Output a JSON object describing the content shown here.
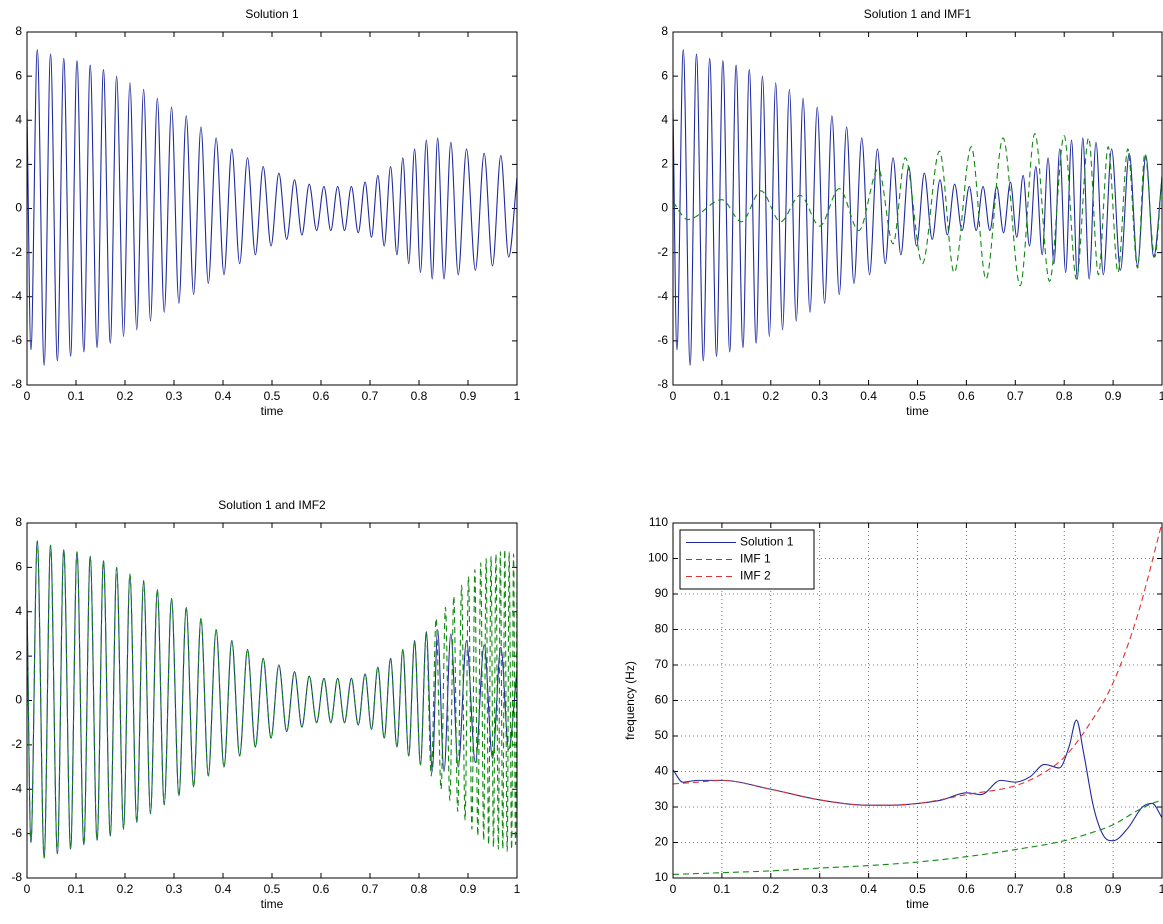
{
  "chart_data": [
    {
      "type": "line",
      "title": "Solution 1",
      "xlabel": "time",
      "xlim": [
        0,
        1
      ],
      "ylim": [
        -8,
        8
      ],
      "xticks": [
        0,
        0.1,
        0.2,
        0.3,
        0.4,
        0.5,
        0.6,
        0.7,
        0.8,
        0.9,
        1
      ],
      "yticks": [
        -8,
        -6,
        -4,
        -2,
        0,
        2,
        4,
        6,
        8
      ],
      "series": [
        {
          "color": "#1f2a9c",
          "linestyle": "solid",
          "x": [
            0,
            0.008,
            0.021,
            0.035,
            0.048,
            0.062,
            0.075,
            0.089,
            0.102,
            0.116,
            0.129,
            0.143,
            0.156,
            0.17,
            0.183,
            0.197,
            0.21,
            0.224,
            0.238,
            0.252,
            0.266,
            0.28,
            0.295,
            0.31,
            0.325,
            0.34,
            0.355,
            0.37,
            0.386,
            0.402,
            0.418,
            0.434,
            0.45,
            0.466,
            0.482,
            0.498,
            0.514,
            0.53,
            0.546,
            0.561,
            0.576,
            0.591,
            0.606,
            0.62,
            0.634,
            0.648,
            0.662,
            0.676,
            0.69,
            0.703,
            0.716,
            0.729,
            0.742,
            0.755,
            0.767,
            0.779,
            0.791,
            0.803,
            0.815,
            0.827,
            0.838,
            0.851,
            0.865,
            0.88,
            0.897,
            0.915,
            0.933,
            0.95,
            0.967,
            0.983,
            1
          ],
          "values": [
            4.5,
            -6.4,
            7.2,
            -7.1,
            7.0,
            -6.9,
            6.8,
            -6.7,
            6.7,
            -6.5,
            6.5,
            -6.3,
            6.3,
            -6.1,
            6.0,
            -5.8,
            5.7,
            -5.5,
            5.4,
            -5.1,
            5.0,
            -4.7,
            4.6,
            -4.3,
            4.2,
            -3.9,
            3.7,
            -3.4,
            3.2,
            -3.0,
            2.7,
            -2.5,
            2.3,
            -2.1,
            1.9,
            -1.7,
            1.6,
            -1.4,
            1.3,
            -1.2,
            1.1,
            -1.0,
            1.0,
            -1.0,
            1.0,
            -1.0,
            1.0,
            -1.1,
            1.2,
            -1.3,
            1.5,
            -1.7,
            1.9,
            -2.1,
            2.3,
            -2.5,
            2.7,
            -2.9,
            3.1,
            -3.2,
            3.2,
            -3.2,
            3.0,
            -3.0,
            2.7,
            -2.8,
            2.5,
            -2.6,
            2.4,
            -2.2,
            1.4
          ]
        }
      ]
    },
    {
      "type": "line",
      "title": "Solution 1 and IMF1",
      "xlabel": "time",
      "xlim": [
        0,
        1
      ],
      "ylim": [
        -8,
        8
      ],
      "xticks": [
        0,
        0.1,
        0.2,
        0.3,
        0.4,
        0.5,
        0.6,
        0.7,
        0.8,
        0.9,
        1
      ],
      "yticks": [
        -8,
        -6,
        -4,
        -2,
        0,
        2,
        4,
        6,
        8
      ],
      "series": [
        {
          "color": "#1f2a9c",
          "linestyle": "solid",
          "x": [
            0,
            0.008,
            0.021,
            0.035,
            0.048,
            0.062,
            0.075,
            0.089,
            0.102,
            0.116,
            0.129,
            0.143,
            0.156,
            0.17,
            0.183,
            0.197,
            0.21,
            0.224,
            0.238,
            0.252,
            0.266,
            0.28,
            0.295,
            0.31,
            0.325,
            0.34,
            0.355,
            0.37,
            0.386,
            0.402,
            0.418,
            0.434,
            0.45,
            0.466,
            0.482,
            0.498,
            0.514,
            0.53,
            0.546,
            0.561,
            0.576,
            0.591,
            0.606,
            0.62,
            0.634,
            0.648,
            0.662,
            0.676,
            0.69,
            0.703,
            0.716,
            0.729,
            0.742,
            0.755,
            0.767,
            0.779,
            0.791,
            0.803,
            0.815,
            0.827,
            0.838,
            0.851,
            0.865,
            0.88,
            0.897,
            0.915,
            0.933,
            0.95,
            0.967,
            0.983,
            1
          ],
          "values": [
            4.5,
            -6.4,
            7.2,
            -7.1,
            7.0,
            -6.9,
            6.8,
            -6.7,
            6.7,
            -6.5,
            6.5,
            -6.3,
            6.3,
            -6.1,
            6.0,
            -5.8,
            5.7,
            -5.5,
            5.4,
            -5.1,
            5.0,
            -4.7,
            4.6,
            -4.3,
            4.2,
            -3.9,
            3.7,
            -3.4,
            3.2,
            -3.0,
            2.7,
            -2.5,
            2.3,
            -2.1,
            1.9,
            -1.7,
            1.6,
            -1.4,
            1.3,
            -1.2,
            1.1,
            -1.0,
            1.0,
            -1.0,
            1.0,
            -1.0,
            1.0,
            -1.1,
            1.2,
            -1.3,
            1.5,
            -1.7,
            1.9,
            -2.1,
            2.3,
            -2.5,
            2.7,
            -2.9,
            3.1,
            -3.2,
            3.2,
            -3.2,
            3.0,
            -3.0,
            2.7,
            -2.8,
            2.5,
            -2.6,
            2.4,
            -2.2,
            1.4
          ]
        },
        {
          "color": "#108a10",
          "linestyle": "dashed",
          "x": [
            0,
            0.03,
            0.1,
            0.14,
            0.18,
            0.22,
            0.26,
            0.3,
            0.34,
            0.38,
            0.42,
            0.45,
            0.475,
            0.51,
            0.545,
            0.575,
            0.61,
            0.64,
            0.675,
            0.71,
            0.74,
            0.77,
            0.8,
            0.825,
            0.85,
            0.87,
            0.89,
            0.91,
            0.93,
            0.95,
            0.965,
            0.985,
            1
          ],
          "values": [
            0.3,
            -0.5,
            0.4,
            -0.6,
            0.8,
            -0.6,
            0.6,
            -0.8,
            0.9,
            -1.0,
            1.8,
            -1.6,
            2.3,
            -2.5,
            2.6,
            -2.9,
            2.8,
            -3.2,
            3.2,
            -3.5,
            3.4,
            -3.3,
            3.3,
            -3.2,
            3.2,
            -3.0,
            2.8,
            -2.9,
            2.7,
            -2.7,
            2.5,
            -2.2,
            1.5
          ]
        }
      ]
    },
    {
      "type": "line",
      "title": "Solution 1 and IMF2",
      "xlabel": "time",
      "xlim": [
        0,
        1
      ],
      "ylim": [
        -8,
        8
      ],
      "xticks": [
        0,
        0.1,
        0.2,
        0.3,
        0.4,
        0.5,
        0.6,
        0.7,
        0.8,
        0.9,
        1
      ],
      "yticks": [
        -8,
        -6,
        -4,
        -2,
        0,
        2,
        4,
        6,
        8
      ],
      "series": [
        {
          "color": "#1f2a9c",
          "linestyle": "solid",
          "x": [
            0,
            0.008,
            0.021,
            0.035,
            0.048,
            0.062,
            0.075,
            0.089,
            0.102,
            0.116,
            0.129,
            0.143,
            0.156,
            0.17,
            0.183,
            0.197,
            0.21,
            0.224,
            0.238,
            0.252,
            0.266,
            0.28,
            0.295,
            0.31,
            0.325,
            0.34,
            0.355,
            0.37,
            0.386,
            0.402,
            0.418,
            0.434,
            0.45,
            0.466,
            0.482,
            0.498,
            0.514,
            0.53,
            0.546,
            0.561,
            0.576,
            0.591,
            0.606,
            0.62,
            0.634,
            0.648,
            0.662,
            0.676,
            0.69,
            0.703,
            0.716,
            0.729,
            0.742,
            0.755,
            0.767,
            0.779,
            0.791,
            0.803,
            0.815,
            0.827,
            0.838,
            0.851,
            0.865,
            0.88,
            0.897,
            0.915,
            0.933,
            0.95,
            0.967,
            0.983,
            1
          ],
          "values": [
            4.5,
            -6.4,
            7.2,
            -7.1,
            7.0,
            -6.9,
            6.8,
            -6.7,
            6.7,
            -6.5,
            6.5,
            -6.3,
            6.3,
            -6.1,
            6.0,
            -5.8,
            5.7,
            -5.5,
            5.4,
            -5.1,
            5.0,
            -4.7,
            4.6,
            -4.3,
            4.2,
            -3.9,
            3.7,
            -3.4,
            3.2,
            -3.0,
            2.7,
            -2.5,
            2.3,
            -2.1,
            1.9,
            -1.7,
            1.6,
            -1.4,
            1.3,
            -1.2,
            1.1,
            -1.0,
            1.0,
            -1.0,
            1.0,
            -1.0,
            1.0,
            -1.1,
            1.2,
            -1.3,
            1.5,
            -1.7,
            1.9,
            -2.1,
            2.3,
            -2.5,
            2.7,
            -2.9,
            3.1,
            -3.2,
            3.2,
            -3.2,
            3.0,
            -3.0,
            2.7,
            -2.8,
            2.5,
            -2.6,
            2.4,
            -2.2,
            1.4
          ]
        },
        {
          "color": "#108a10",
          "linestyle": "dashed",
          "x": [
            0,
            0.008,
            0.021,
            0.035,
            0.048,
            0.062,
            0.075,
            0.089,
            0.102,
            0.116,
            0.129,
            0.143,
            0.156,
            0.17,
            0.183,
            0.197,
            0.21,
            0.224,
            0.238,
            0.252,
            0.266,
            0.28,
            0.295,
            0.31,
            0.325,
            0.34,
            0.355,
            0.37,
            0.386,
            0.402,
            0.418,
            0.434,
            0.45,
            0.466,
            0.482,
            0.498,
            0.514,
            0.53,
            0.546,
            0.561,
            0.576,
            0.591,
            0.606,
            0.62,
            0.634,
            0.648,
            0.662,
            0.676,
            0.69,
            0.703,
            0.716,
            0.729,
            0.742,
            0.755,
            0.767,
            0.779,
            0.791,
            0.803,
            0.815,
            0.825,
            0.835,
            0.845,
            0.854,
            0.863,
            0.871,
            0.879,
            0.887,
            0.894,
            0.901,
            0.908,
            0.914,
            0.92,
            0.926,
            0.932,
            0.937,
            0.942,
            0.947,
            0.952,
            0.957,
            0.962,
            0.966,
            0.971,
            0.975,
            0.98,
            0.984,
            0.989,
            0.993,
            0.997,
            1
          ],
          "values": [
            4.5,
            -6.4,
            7.2,
            -7.1,
            7.0,
            -6.9,
            6.8,
            -6.7,
            6.7,
            -6.5,
            6.5,
            -6.3,
            6.3,
            -6.1,
            6.0,
            -5.8,
            5.7,
            -5.5,
            5.4,
            -5.1,
            5.0,
            -4.7,
            4.6,
            -4.3,
            4.2,
            -3.9,
            3.7,
            -3.4,
            3.2,
            -3.0,
            2.7,
            -2.5,
            2.3,
            -2.1,
            1.9,
            -1.7,
            1.6,
            -1.4,
            1.3,
            -1.2,
            1.1,
            -1.0,
            1.0,
            -1.0,
            1.0,
            -1.0,
            1.0,
            -1.1,
            1.2,
            -1.3,
            1.5,
            -1.7,
            1.9,
            -2.1,
            2.3,
            -2.5,
            2.7,
            -2.9,
            3.1,
            -3.4,
            3.7,
            -4.0,
            4.2,
            -4.5,
            4.7,
            -5.0,
            5.2,
            -5.4,
            5.6,
            -5.8,
            5.9,
            -6.1,
            6.2,
            -6.3,
            6.4,
            -6.5,
            6.5,
            -6.6,
            6.6,
            -6.7,
            6.7,
            -6.7,
            6.8,
            -6.8,
            6.7,
            -6.7,
            6.6,
            -6.5,
            5.5
          ]
        }
      ]
    },
    {
      "type": "line",
      "xlabel": "time",
      "ylabel": "frequency (Hz)",
      "xlim": [
        0,
        1
      ],
      "ylim": [
        10,
        110
      ],
      "xticks": [
        0,
        0.1,
        0.2,
        0.3,
        0.4,
        0.5,
        0.6,
        0.7,
        0.8,
        0.9,
        1
      ],
      "yticks": [
        10,
        20,
        30,
        40,
        50,
        60,
        70,
        80,
        90,
        100,
        110
      ],
      "grid": true,
      "legend": "upper left",
      "series": [
        {
          "name": "Solution 1",
          "color": "#1f2a9c",
          "linestyle": "solid",
          "x": [
            0,
            0.02,
            0.05,
            0.1,
            0.2,
            0.3,
            0.4,
            0.45,
            0.5,
            0.55,
            0.6,
            0.63,
            0.67,
            0.7,
            0.73,
            0.76,
            0.79,
            0.81,
            0.825,
            0.84,
            0.86,
            0.88,
            0.9,
            0.93,
            0.96,
            0.98,
            1
          ],
          "values": [
            40.5,
            37,
            37.5,
            37.5,
            35,
            32,
            30.5,
            30.5,
            31,
            32,
            34,
            33.5,
            37.5,
            37,
            38.5,
            42,
            41,
            47,
            54.5,
            45,
            30,
            22,
            20.5,
            24,
            30,
            31,
            27
          ]
        },
        {
          "name": "IMF 1",
          "color": "#108a10",
          "linestyle": "dashed",
          "x": [
            0,
            0.1,
            0.2,
            0.3,
            0.4,
            0.5,
            0.6,
            0.7,
            0.8,
            0.85,
            0.9,
            0.95,
            0.98,
            1
          ],
          "values": [
            11,
            11.5,
            12,
            12.8,
            13.5,
            14.5,
            16,
            18,
            20.5,
            22.5,
            25,
            29,
            31,
            32
          ]
        },
        {
          "name": "IMF 2",
          "color": "#e03030",
          "linestyle": "dashed",
          "x": [
            0,
            0.05,
            0.1,
            0.2,
            0.3,
            0.4,
            0.5,
            0.6,
            0.7,
            0.75,
            0.8,
            0.85,
            0.9,
            0.95,
            1
          ],
          "values": [
            36.5,
            37,
            37.5,
            35,
            32,
            30.5,
            31,
            33.5,
            36,
            39,
            44,
            53,
            65,
            84,
            110
          ]
        }
      ]
    }
  ]
}
